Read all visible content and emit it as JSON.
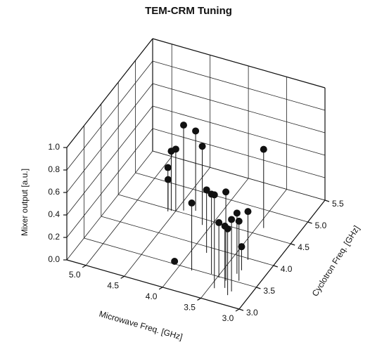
{
  "chart_data": {
    "type": "scatter3d",
    "title": "TEM-CRM Tuning",
    "xlabel": "Microwave Freq.  [GHz]",
    "ylabel": "Cyclotron Freq.  [GHz]",
    "zlabel": "Mixer output  [a.u.]",
    "x": [
      4.42,
      4.29,
      4.55,
      4.5,
      4.1,
      4.58,
      4.6,
      3.42,
      3.83,
      3.82,
      3.59,
      3.44,
      3.38,
      3.48,
      3.33,
      3.24,
      3.32,
      3.24,
      3.23,
      3.32,
      3.3,
      4.09
    ],
    "y": [
      4.55,
      4.61,
      4.48,
      4.5,
      4.38,
      4.45,
      4.5,
      4.65,
      3.47,
      3.88,
      3.51,
      3.26,
      3.46,
      3.48,
      3.32,
      3.2,
      3.65,
      3.53,
      3.29,
      3.97,
      3.74,
      3.55
    ],
    "z": [
      0.76,
      0.71,
      0.53,
      0.55,
      0.7,
      0.39,
      0.26,
      0.7,
      0.6,
      0.56,
      0.71,
      0.83,
      0.79,
      0.49,
      0.55,
      0.59,
      0.54,
      0.53,
      0.64,
      0.43,
      0.21,
      0.0
    ],
    "color": "#111111",
    "xlim": [
      3.0,
      5.25
    ],
    "ylim": [
      3.0,
      5.5
    ],
    "zlim": [
      0,
      1
    ],
    "xticks": [
      {
        "value": 3,
        "label": "3.0"
      },
      3.5,
      {
        "value": 4,
        "label": "4.0"
      },
      4.5,
      {
        "value": 5,
        "label": "5.0"
      }
    ],
    "yticks": [
      {
        "value": 3,
        "label": "3.0"
      },
      3.5,
      {
        "value": 4,
        "label": "4.0"
      },
      4.5,
      {
        "value": 5,
        "label": "5.0"
      },
      5.5
    ],
    "zticks": [
      {
        "value": 0,
        "label": "0.0"
      },
      0.2,
      0.4,
      0.6,
      0.8,
      {
        "value": 1,
        "label": "1.0"
      }
    ],
    "grid": true
  }
}
